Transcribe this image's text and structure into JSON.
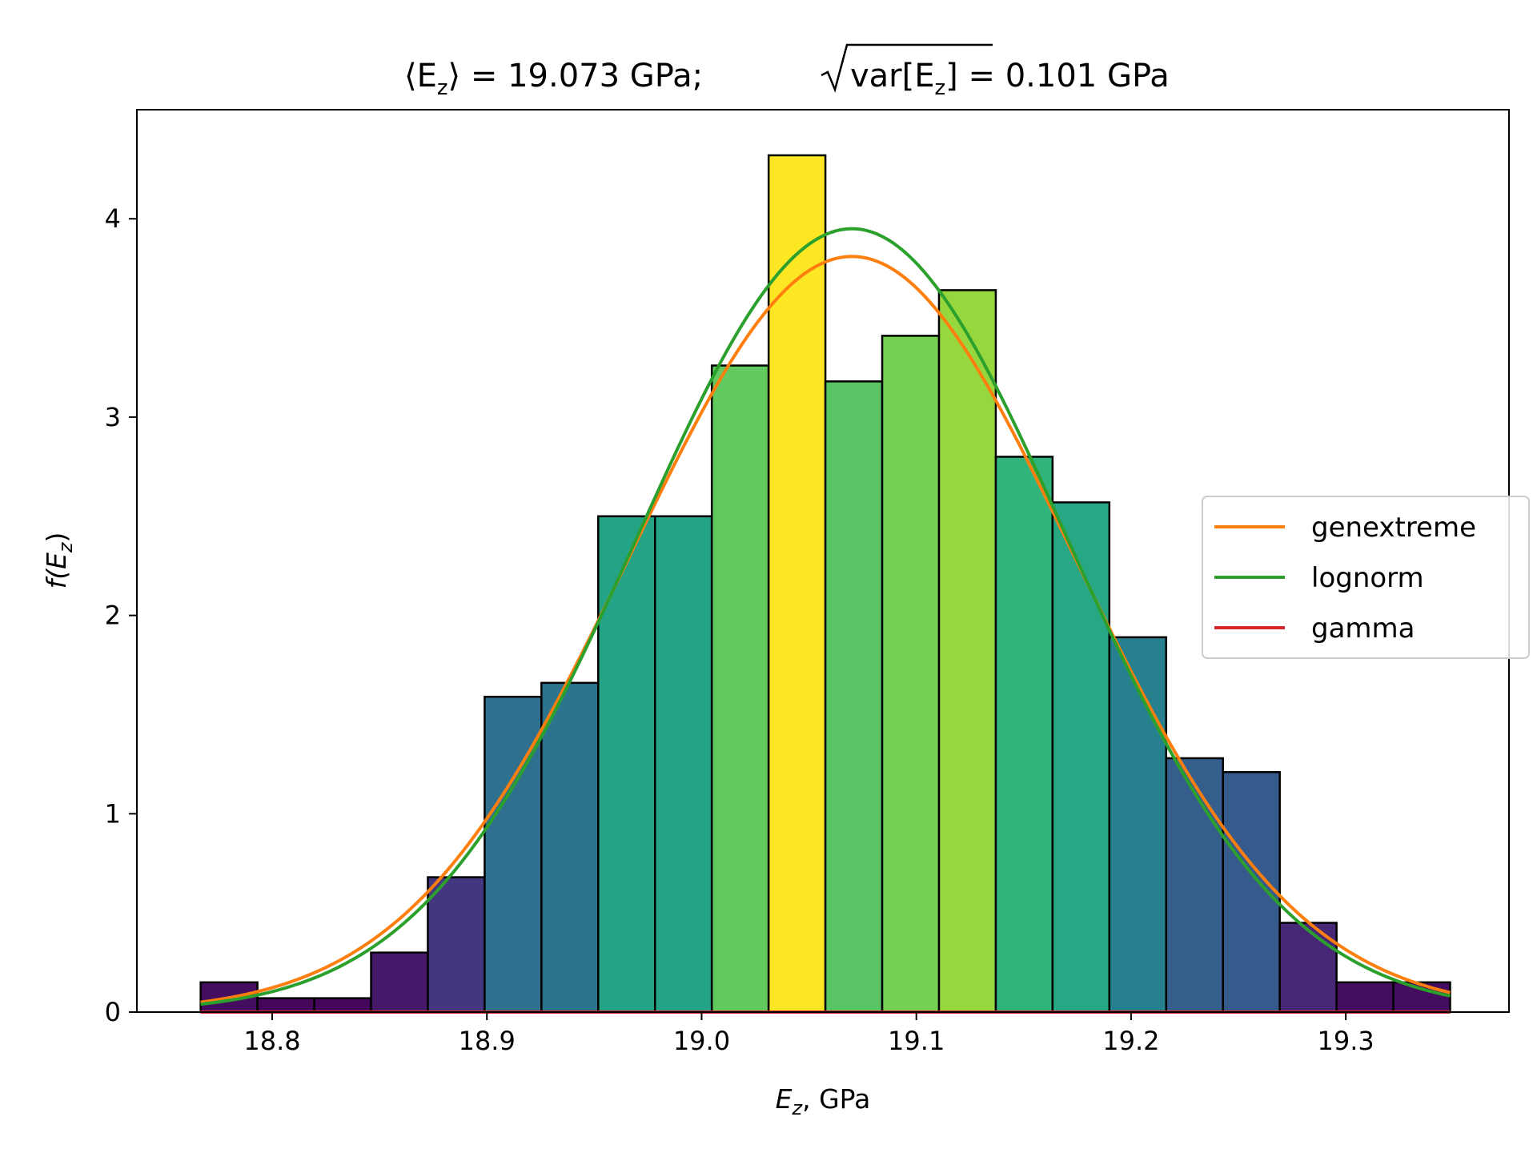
{
  "chart_data": {
    "type": "bar",
    "title": {
      "mean_label": "⟨E",
      "mean_sub": "z",
      "mean_rest": "⟩ = 19.073 GPa;",
      "std_label": "var[E",
      "std_sub": "z",
      "std_rest": "] = 0.101 GPa"
    },
    "xlabel": {
      "var": "E",
      "sub": "z",
      "rest": ", GPa"
    },
    "ylabel": {
      "pre": "f(E",
      "sub": "z",
      "post": ")"
    },
    "xlim": [
      18.737,
      19.376
    ],
    "ylim": [
      0,
      4.55
    ],
    "xticks": [
      18.8,
      18.9,
      19.0,
      19.1,
      19.2,
      19.3
    ],
    "xtick_labels": [
      "18.8",
      "18.9",
      "19.0",
      "19.1",
      "19.2",
      "19.3"
    ],
    "yticks": [
      0,
      1,
      2,
      3,
      4
    ],
    "ytick_labels": [
      "0",
      "1",
      "2",
      "3",
      "4"
    ],
    "bins": {
      "start": 18.7667,
      "width": 0.02645,
      "values": [
        0.15,
        0.07,
        0.07,
        0.3,
        0.68,
        1.59,
        1.66,
        2.5,
        2.5,
        3.26,
        4.32,
        3.18,
        3.41,
        3.64,
        2.8,
        2.57,
        1.89,
        1.28,
        1.21,
        0.45,
        0.15,
        0.15
      ]
    },
    "series": [
      {
        "name": "genextreme",
        "color": "#ff7f0e",
        "mean": 19.07,
        "sd": 0.103,
        "peak": 3.81
      },
      {
        "name": "lognorm",
        "color": "#2ca02c",
        "mean": 19.07,
        "sd": 0.1,
        "peak": 3.95
      },
      {
        "name": "gamma",
        "color": "#d62728",
        "value": 0
      }
    ],
    "colormap": "viridis",
    "grid": false,
    "legend_position": "center-right"
  }
}
